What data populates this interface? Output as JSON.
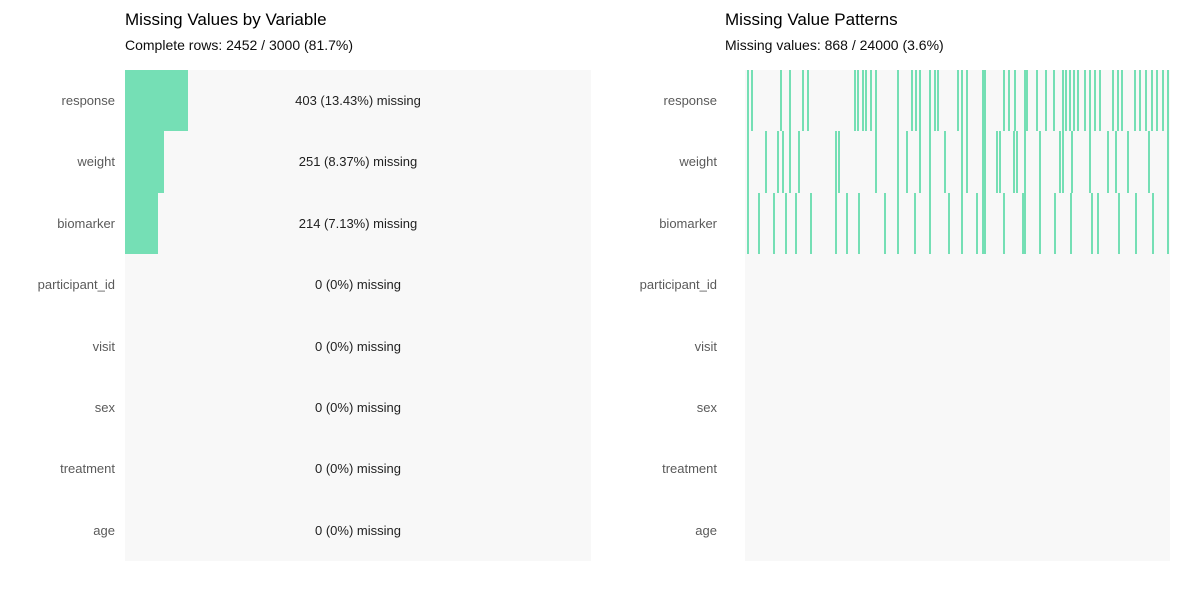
{
  "colors": {
    "missing_green": "#75dfb5",
    "panel_background": "#f8f8f8",
    "row_label_text": "#5a5a5a",
    "value_text": "#212121",
    "title_text": "#000000"
  },
  "chart_data": [
    {
      "type": "bar",
      "orientation": "horizontal",
      "title": "Missing Values by Variable",
      "subtitle": "Complete rows: 2452 / 3000 (81.7%)",
      "complete_rows": 2452,
      "total_rows": 3000,
      "complete_pct": 81.7,
      "xlim": [
        0,
        100
      ],
      "grid": false,
      "categories": [
        "response",
        "weight",
        "biomarker",
        "participant_id",
        "visit",
        "sex",
        "treatment",
        "age"
      ],
      "values": [
        13.43,
        8.37,
        7.13,
        0,
        0,
        0,
        0,
        0
      ],
      "counts": [
        403,
        251,
        214,
        0,
        0,
        0,
        0,
        0
      ],
      "bar_labels": [
        "403 (13.43%) missing",
        "251 (8.37%) missing",
        "214 (7.13%) missing",
        "0 (0%) missing",
        "0 (0%) missing",
        "0 (0%) missing",
        "0 (0%) missing",
        "0 (0%) missing"
      ]
    },
    {
      "type": "heatmap",
      "title": "Missing Value Patterns",
      "subtitle": "Missing values: 868 / 24000 (3.6%)",
      "missing_cells": 868,
      "total_cells": 24000,
      "missing_pct": 3.6,
      "categories": [
        "response",
        "weight",
        "biomarker",
        "participant_id",
        "visit",
        "sex",
        "treatment",
        "age"
      ],
      "missing_lines": {
        "response": [
          0.007,
          0.016,
          0.085,
          0.106,
          0.136,
          0.148,
          0.259,
          0.266,
          0.278,
          0.285,
          0.296,
          0.308,
          0.36,
          0.393,
          0.402,
          0.412,
          0.435,
          0.447,
          0.454,
          0.501,
          0.511,
          0.522,
          0.56,
          0.565,
          0.609,
          0.621,
          0.635,
          0.659,
          0.664,
          0.687,
          0.708,
          0.727,
          0.748,
          0.755,
          0.765,
          0.774,
          0.784,
          0.8,
          0.812,
          0.824,
          0.835,
          0.866,
          0.878,
          0.887,
          0.918,
          0.929,
          0.944,
          0.958,
          0.969,
          0.983,
          0.995
        ],
        "weight": [
          0.007,
          0.05,
          0.078,
          0.09,
          0.106,
          0.128,
          0.214,
          0.222,
          0.308,
          0.36,
          0.38,
          0.412,
          0.435,
          0.47,
          0.511,
          0.522,
          0.56,
          0.565,
          0.593,
          0.6,
          0.632,
          0.64,
          0.659,
          0.694,
          0.741,
          0.748,
          0.77,
          0.812,
          0.854,
          0.873,
          0.902,
          0.951,
          0.995
        ],
        "biomarker": [
          0.007,
          0.033,
          0.068,
          0.096,
          0.12,
          0.155,
          0.214,
          0.24,
          0.268,
          0.33,
          0.36,
          0.4,
          0.435,
          0.48,
          0.511,
          0.545,
          0.56,
          0.565,
          0.61,
          0.655,
          0.659,
          0.694,
          0.73,
          0.766,
          0.817,
          0.83,
          0.88,
          0.92,
          0.96,
          0.995
        ]
      }
    }
  ],
  "layout_note": ""
}
